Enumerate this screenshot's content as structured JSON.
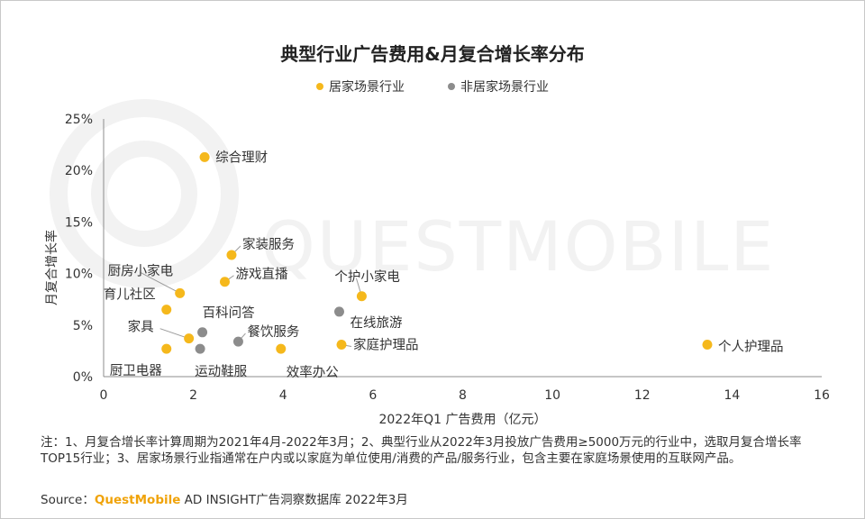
{
  "chart_data": {
    "type": "scatter",
    "title": "典型行业广告费用&月复合增长率分布",
    "xlabel": "2022年Q1 广告费用（亿元）",
    "ylabel": "月复合增长率",
    "xlim": [
      0,
      16
    ],
    "ylim": [
      0,
      25
    ],
    "x_ticks": [
      "0",
      "2",
      "4",
      "6",
      "8",
      "10",
      "12",
      "14",
      "16"
    ],
    "y_ticks": [
      "0%",
      "5%",
      "10%",
      "15%",
      "20%",
      "25%"
    ],
    "legend": [
      "居家场景行业",
      "非居家场景行业"
    ],
    "legend_placement": "top",
    "colors": {
      "home": "#f5b81c",
      "non_home": "#8c8c8c"
    },
    "series": [
      {
        "name": "居家场景行业",
        "points": [
          {
            "label": "综合理财",
            "x": 2.25,
            "y": 21.3
          },
          {
            "label": "家装服务",
            "x": 2.85,
            "y": 11.8
          },
          {
            "label": "游戏直播",
            "x": 2.7,
            "y": 9.2
          },
          {
            "label": "厨房小家电",
            "x": 1.7,
            "y": 8.1
          },
          {
            "label": "育儿社区",
            "x": 1.4,
            "y": 6.5
          },
          {
            "label": "家具",
            "x": 1.9,
            "y": 3.7
          },
          {
            "label": "厨卫电器",
            "x": 1.4,
            "y": 2.7
          },
          {
            "label": "效率办公",
            "x": 3.95,
            "y": 2.7
          },
          {
            "label": "个护小家电",
            "x": 5.75,
            "y": 7.8
          },
          {
            "label": "家庭护理品",
            "x": 5.3,
            "y": 3.1
          },
          {
            "label": "个人护理品",
            "x": 13.45,
            "y": 3.1
          }
        ]
      },
      {
        "name": "非居家场景行业",
        "points": [
          {
            "label": "百科问答",
            "x": 2.2,
            "y": 4.3
          },
          {
            "label": "运动鞋服",
            "x": 2.15,
            "y": 2.7
          },
          {
            "label": "餐饮服务",
            "x": 3.0,
            "y": 3.4
          },
          {
            "label": "在线旅游",
            "x": 5.25,
            "y": 6.3
          }
        ]
      }
    ]
  },
  "watermark": "QUESTMOBILE",
  "note": "注：1、月复合增长率计算周期为2021年4月-2022年3月；2、典型行业从2022年3月投放广告费用≥5000万元的行业中，选取月复合增长率TOP15行业；3、居家场景行业指通常在户内或以家庭为单位使用/消费的产品/服务行业，包含主要在家庭场景使用的互联网产品。",
  "source": {
    "prefix": "Source：",
    "brand": "QuestMobile",
    "rest": " AD INSIGHT广告洞察数据库 2022年3月"
  }
}
